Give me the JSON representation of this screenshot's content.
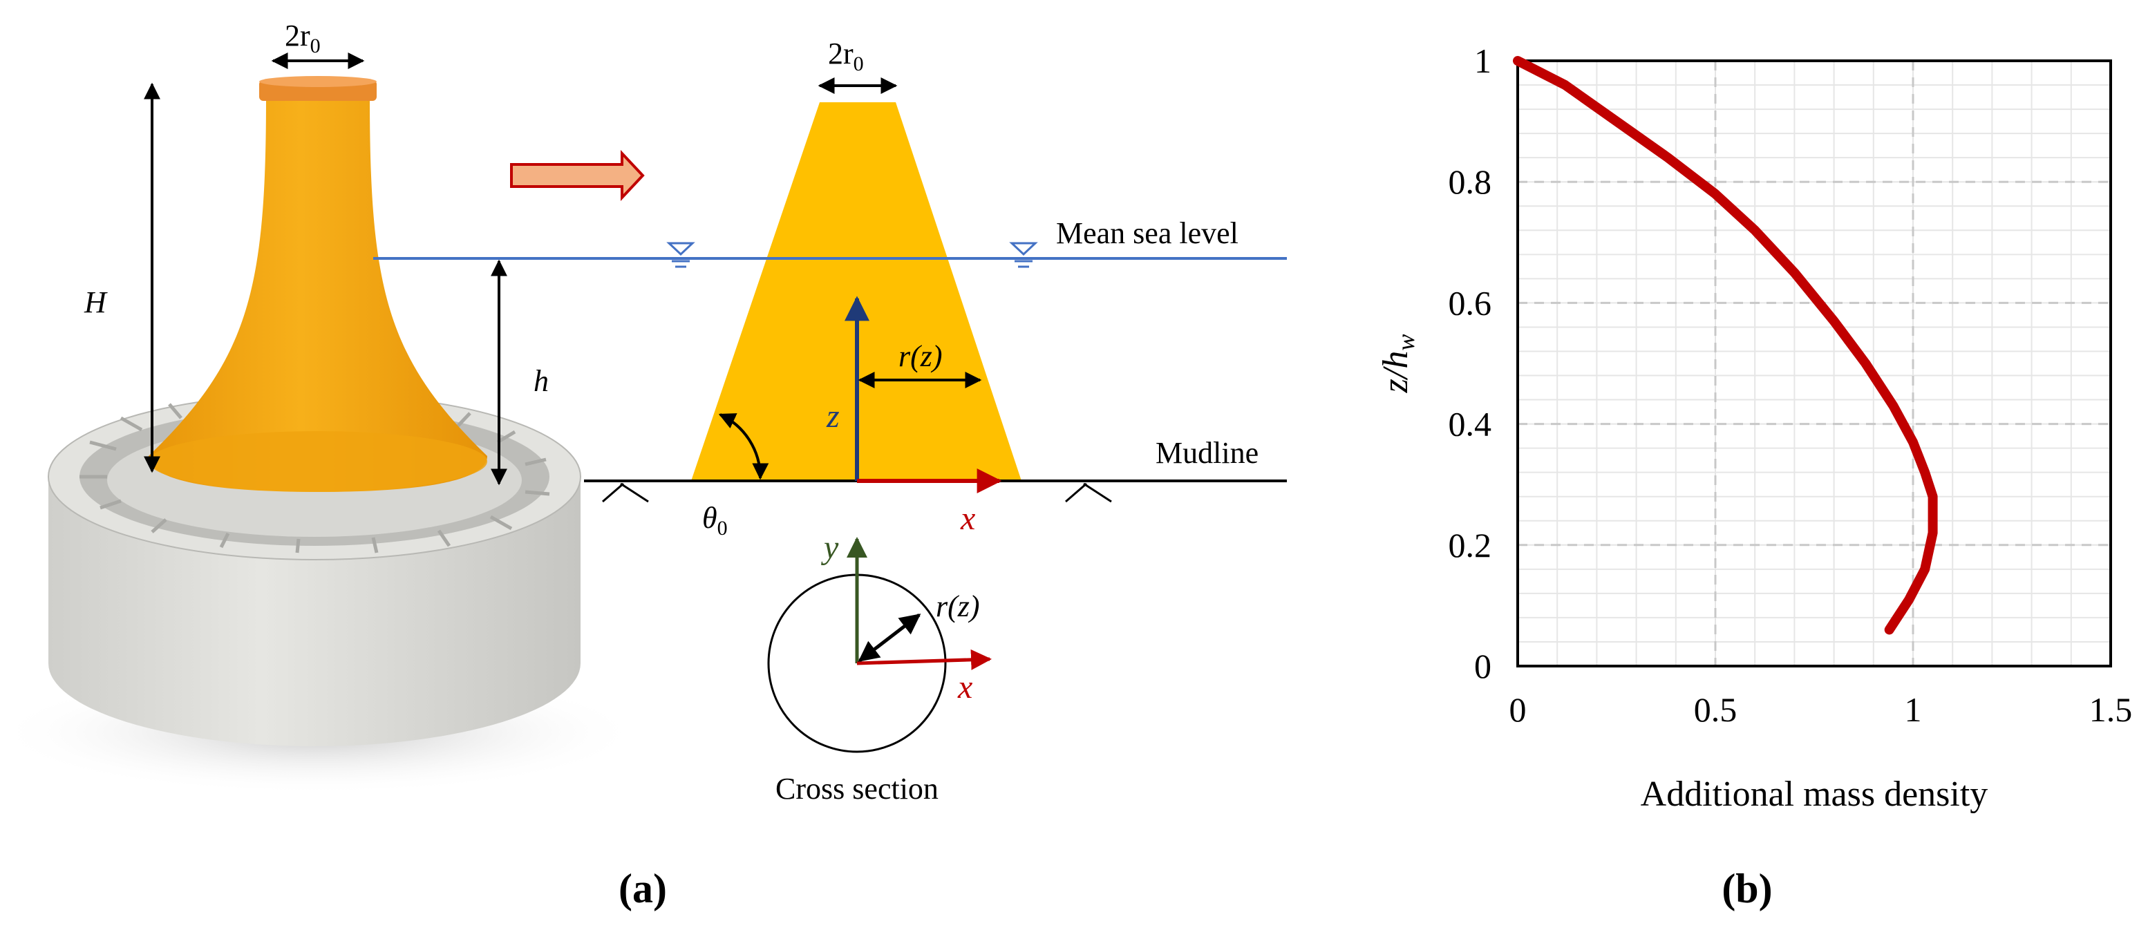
{
  "panel_a": {
    "caption": "(a)",
    "dim_2r0": {
      "base": "2r",
      "sub": "0"
    },
    "dim_H": "H",
    "dim_h": "h",
    "label_mean_sea_level": "Mean sea level",
    "label_mudline": "Mudline",
    "label_z": "z",
    "label_x": "x",
    "label_y": "y",
    "label_rz": "r(z)",
    "label_theta0": {
      "base": "θ",
      "sub": "0"
    },
    "label_cross_section": "Cross section",
    "colors": {
      "body": "#f5a60c",
      "cap": "#e98b2d",
      "foundation": "#dadad6",
      "section": "#ffc000",
      "water_line": "#4472c4",
      "arrow": "#c00000",
      "z_axis": "#1f3a78",
      "y_axis": "#385723"
    }
  },
  "panel_b": {
    "caption": "(b)",
    "chart_data": {
      "type": "line",
      "xlabel": "Additional mass density",
      "ylabel": {
        "base": "z/h",
        "sub": "w"
      },
      "xlim": [
        0,
        1.5
      ],
      "ylim": [
        0,
        1
      ],
      "xticks": [
        "0",
        "0.5",
        "1",
        "1.5"
      ],
      "yticks": [
        "0",
        "0.2",
        "0.4",
        "0.6",
        "0.8",
        "1"
      ],
      "grid": true,
      "series": [
        {
          "color": "#c00000",
          "x": [
            0.0,
            0.12,
            0.25,
            0.38,
            0.5,
            0.6,
            0.7,
            0.8,
            0.88,
            0.95,
            1.0,
            1.03,
            1.05,
            1.05,
            1.03,
            0.99,
            0.94
          ],
          "y": [
            1.0,
            0.96,
            0.9,
            0.84,
            0.78,
            0.72,
            0.65,
            0.57,
            0.5,
            0.43,
            0.37,
            0.32,
            0.28,
            0.22,
            0.16,
            0.11,
            0.06
          ]
        }
      ]
    }
  }
}
